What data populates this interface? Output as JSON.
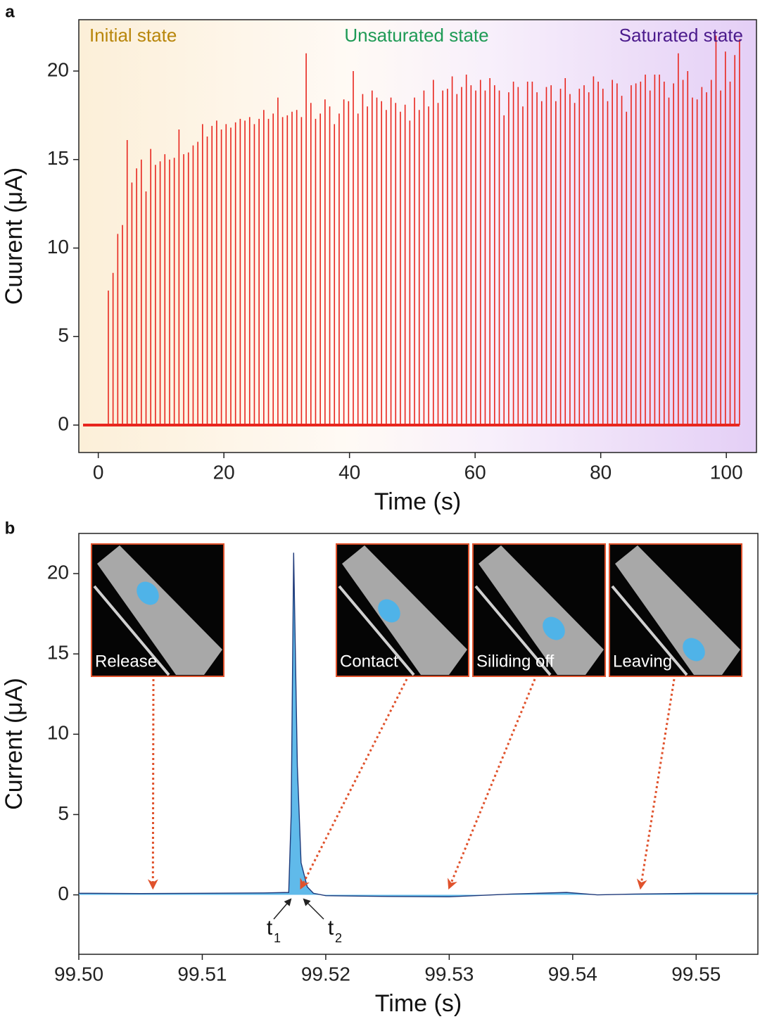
{
  "chart_data": [
    {
      "type": "stem",
      "panel_label": "a",
      "x_label": "Time (s)",
      "y_label": "Cuurent (μA)",
      "annotations": [
        {
          "text": "Initial state",
          "color": "#b8860b"
        },
        {
          "text": "Unsaturated state",
          "color": "#1e9a55"
        },
        {
          "text": "Saturated state",
          "color": "#4b1a8c"
        }
      ],
      "color": "#e8261e",
      "x": [
        1.6,
        2.35,
        3.1,
        3.85,
        4.6,
        5.35,
        6.1,
        6.85,
        7.6,
        8.35,
        9.1,
        9.85,
        10.6,
        11.35,
        12.1,
        12.85,
        13.6,
        14.35,
        15.1,
        15.85,
        16.6,
        17.35,
        18.1,
        18.85,
        19.6,
        20.35,
        21.1,
        21.85,
        22.6,
        23.35,
        24.1,
        24.85,
        25.6,
        26.35,
        27.1,
        27.85,
        28.6,
        29.35,
        30.1,
        30.85,
        31.6,
        32.35,
        33.1,
        33.85,
        34.6,
        35.35,
        36.1,
        36.85,
        37.6,
        38.35,
        39.1,
        39.85,
        40.6,
        41.35,
        42.1,
        42.85,
        43.6,
        44.35,
        45.1,
        45.85,
        46.6,
        47.35,
        48.1,
        48.85,
        49.6,
        50.35,
        51.1,
        51.85,
        52.6,
        53.35,
        54.1,
        54.85,
        55.6,
        56.35,
        57.1,
        57.85,
        58.6,
        59.35,
        60.1,
        60.85,
        61.6,
        62.35,
        63.1,
        63.85,
        64.6,
        65.35,
        66.1,
        66.85,
        67.6,
        68.35,
        69.1,
        69.85,
        70.6,
        71.35,
        72.1,
        72.85,
        73.6,
        74.35,
        75.1,
        75.85,
        76.6,
        77.35,
        78.1,
        78.85,
        79.6,
        80.35,
        81.1,
        81.85,
        82.6,
        83.35,
        84.1,
        84.85,
        85.6,
        86.35,
        87.1,
        87.85,
        88.6,
        89.35,
        90.1,
        90.85,
        91.6,
        92.35,
        93.1,
        93.85,
        94.6,
        95.35,
        96.1,
        96.85,
        97.6,
        98.35,
        99.1,
        99.85,
        100.6,
        101.35,
        102.1
      ],
      "values": [
        7.6,
        8.6,
        10.8,
        11.3,
        16.1,
        13.7,
        14.5,
        15.0,
        13.2,
        15.6,
        14.7,
        14.9,
        15.3,
        15.0,
        15.1,
        16.7,
        15.3,
        15.4,
        15.8,
        16.0,
        17.0,
        16.3,
        16.9,
        17.2,
        16.7,
        17.0,
        16.8,
        17.1,
        17.3,
        17.2,
        17.4,
        17.0,
        17.3,
        17.8,
        17.3,
        17.6,
        18.5,
        17.4,
        17.5,
        17.7,
        17.8,
        17.4,
        21.0,
        18.2,
        17.3,
        17.6,
        18.4,
        18.0,
        17.0,
        17.6,
        18.4,
        18.3,
        20.0,
        17.6,
        18.7,
        18.0,
        18.9,
        18.5,
        18.3,
        17.8,
        18.5,
        18.2,
        17.7,
        18.1,
        17.2,
        18.5,
        17.8,
        18.9,
        18.0,
        19.5,
        18.2,
        18.9,
        19.0,
        19.7,
        18.7,
        19.1,
        19.8,
        19.2,
        18.9,
        19.5,
        18.9,
        19.6,
        19.2,
        18.9,
        17.5,
        18.8,
        19.4,
        19.1,
        18.0,
        19.4,
        19.4,
        18.8,
        18.3,
        19.1,
        19.2,
        18.3,
        19.0,
        19.6,
        18.7,
        18.2,
        19.0,
        19.2,
        18.8,
        19.7,
        19.4,
        19.0,
        18.3,
        19.5,
        19.3,
        18.6,
        17.7,
        19.2,
        19.3,
        19.4,
        19.8,
        18.9,
        19.8,
        19.8,
        19.4,
        18.5,
        19.3,
        21.0,
        19.5,
        20.0,
        18.5,
        18.4,
        19.1,
        18.8,
        19.5,
        22.0,
        18.9,
        21.1,
        19.4,
        20.9,
        21.8
      ],
      "xlim": [
        -3.1,
        104.8
      ],
      "xticks": [
        0,
        20,
        40,
        60,
        80,
        100
      ],
      "ylim": [
        -1.55,
        22.9
      ],
      "yticks": [
        0,
        5,
        10,
        15,
        20
      ]
    },
    {
      "type": "line",
      "panel_label": "b",
      "x_label": "Time (s)",
      "y_label": "Current (μA)",
      "series": [
        {
          "color": "#1f3a7a",
          "fill": "#4fb3e8",
          "x": [
            99.5,
            99.505,
            99.51,
            99.515,
            99.517,
            99.5172,
            99.5174,
            99.5177,
            99.518,
            99.5185,
            99.519,
            99.52,
            99.525,
            99.53,
            99.535,
            99.5395,
            99.542,
            99.545,
            99.55,
            99.555
          ],
          "values": [
            0.1,
            0.08,
            0.1,
            0.12,
            0.15,
            5,
            21.3,
            8,
            2,
            0.5,
            0.1,
            -0.05,
            -0.1,
            -0.12,
            0.05,
            0.15,
            0.0,
            0.05,
            0.1,
            0.1
          ]
        }
      ],
      "insets": [
        {
          "label": "Release",
          "time": 99.506
        },
        {
          "label": "Contact",
          "time": 99.518
        },
        {
          "label": "Siliding off",
          "time": 99.53
        },
        {
          "label": "Leaving",
          "time": 99.5455
        }
      ],
      "markers": [
        {
          "text": "t",
          "sub": "1"
        },
        {
          "text": "t",
          "sub": "2"
        }
      ],
      "xlim": [
        99.5,
        99.555
      ],
      "xticks": [
        {
          "value": 99.5,
          "label": "99.50"
        },
        99.51,
        99.52,
        99.53,
        99.54,
        99.55
      ],
      "ylim": [
        -3.7,
        22.5
      ],
      "yticks": [
        0,
        5,
        10,
        15,
        20
      ]
    }
  ]
}
